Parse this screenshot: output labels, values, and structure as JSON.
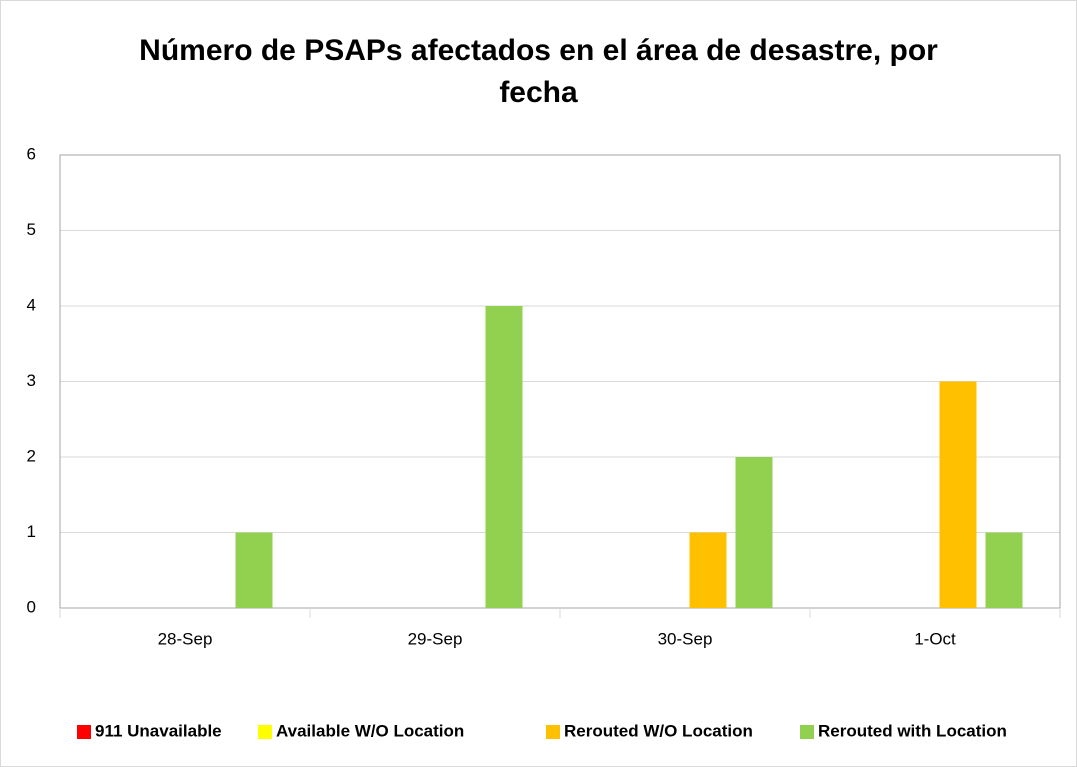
{
  "chart_data": {
    "type": "bar",
    "title": "Número de PSAPs afectados en el área de desastre, por fecha",
    "categories": [
      "28-Sep",
      "29-Sep",
      "30-Sep",
      "1-Oct"
    ],
    "series": [
      {
        "name": "911 Unavailable",
        "color": "#ff0000",
        "values": [
          0,
          0,
          0,
          0
        ]
      },
      {
        "name": "Available W/O Location",
        "color": "#ffff00",
        "values": [
          0,
          0,
          0,
          0
        ]
      },
      {
        "name": "Rerouted W/O Location",
        "color": "#ffc000",
        "values": [
          0,
          0,
          1,
          3
        ]
      },
      {
        "name": "Rerouted with Location",
        "color": "#92d050",
        "values": [
          1,
          4,
          2,
          1
        ]
      }
    ],
    "ylim": [
      0,
      6
    ],
    "yticks": [
      0,
      1,
      2,
      3,
      4,
      5,
      6
    ],
    "grid": true,
    "legend": "bottom"
  }
}
